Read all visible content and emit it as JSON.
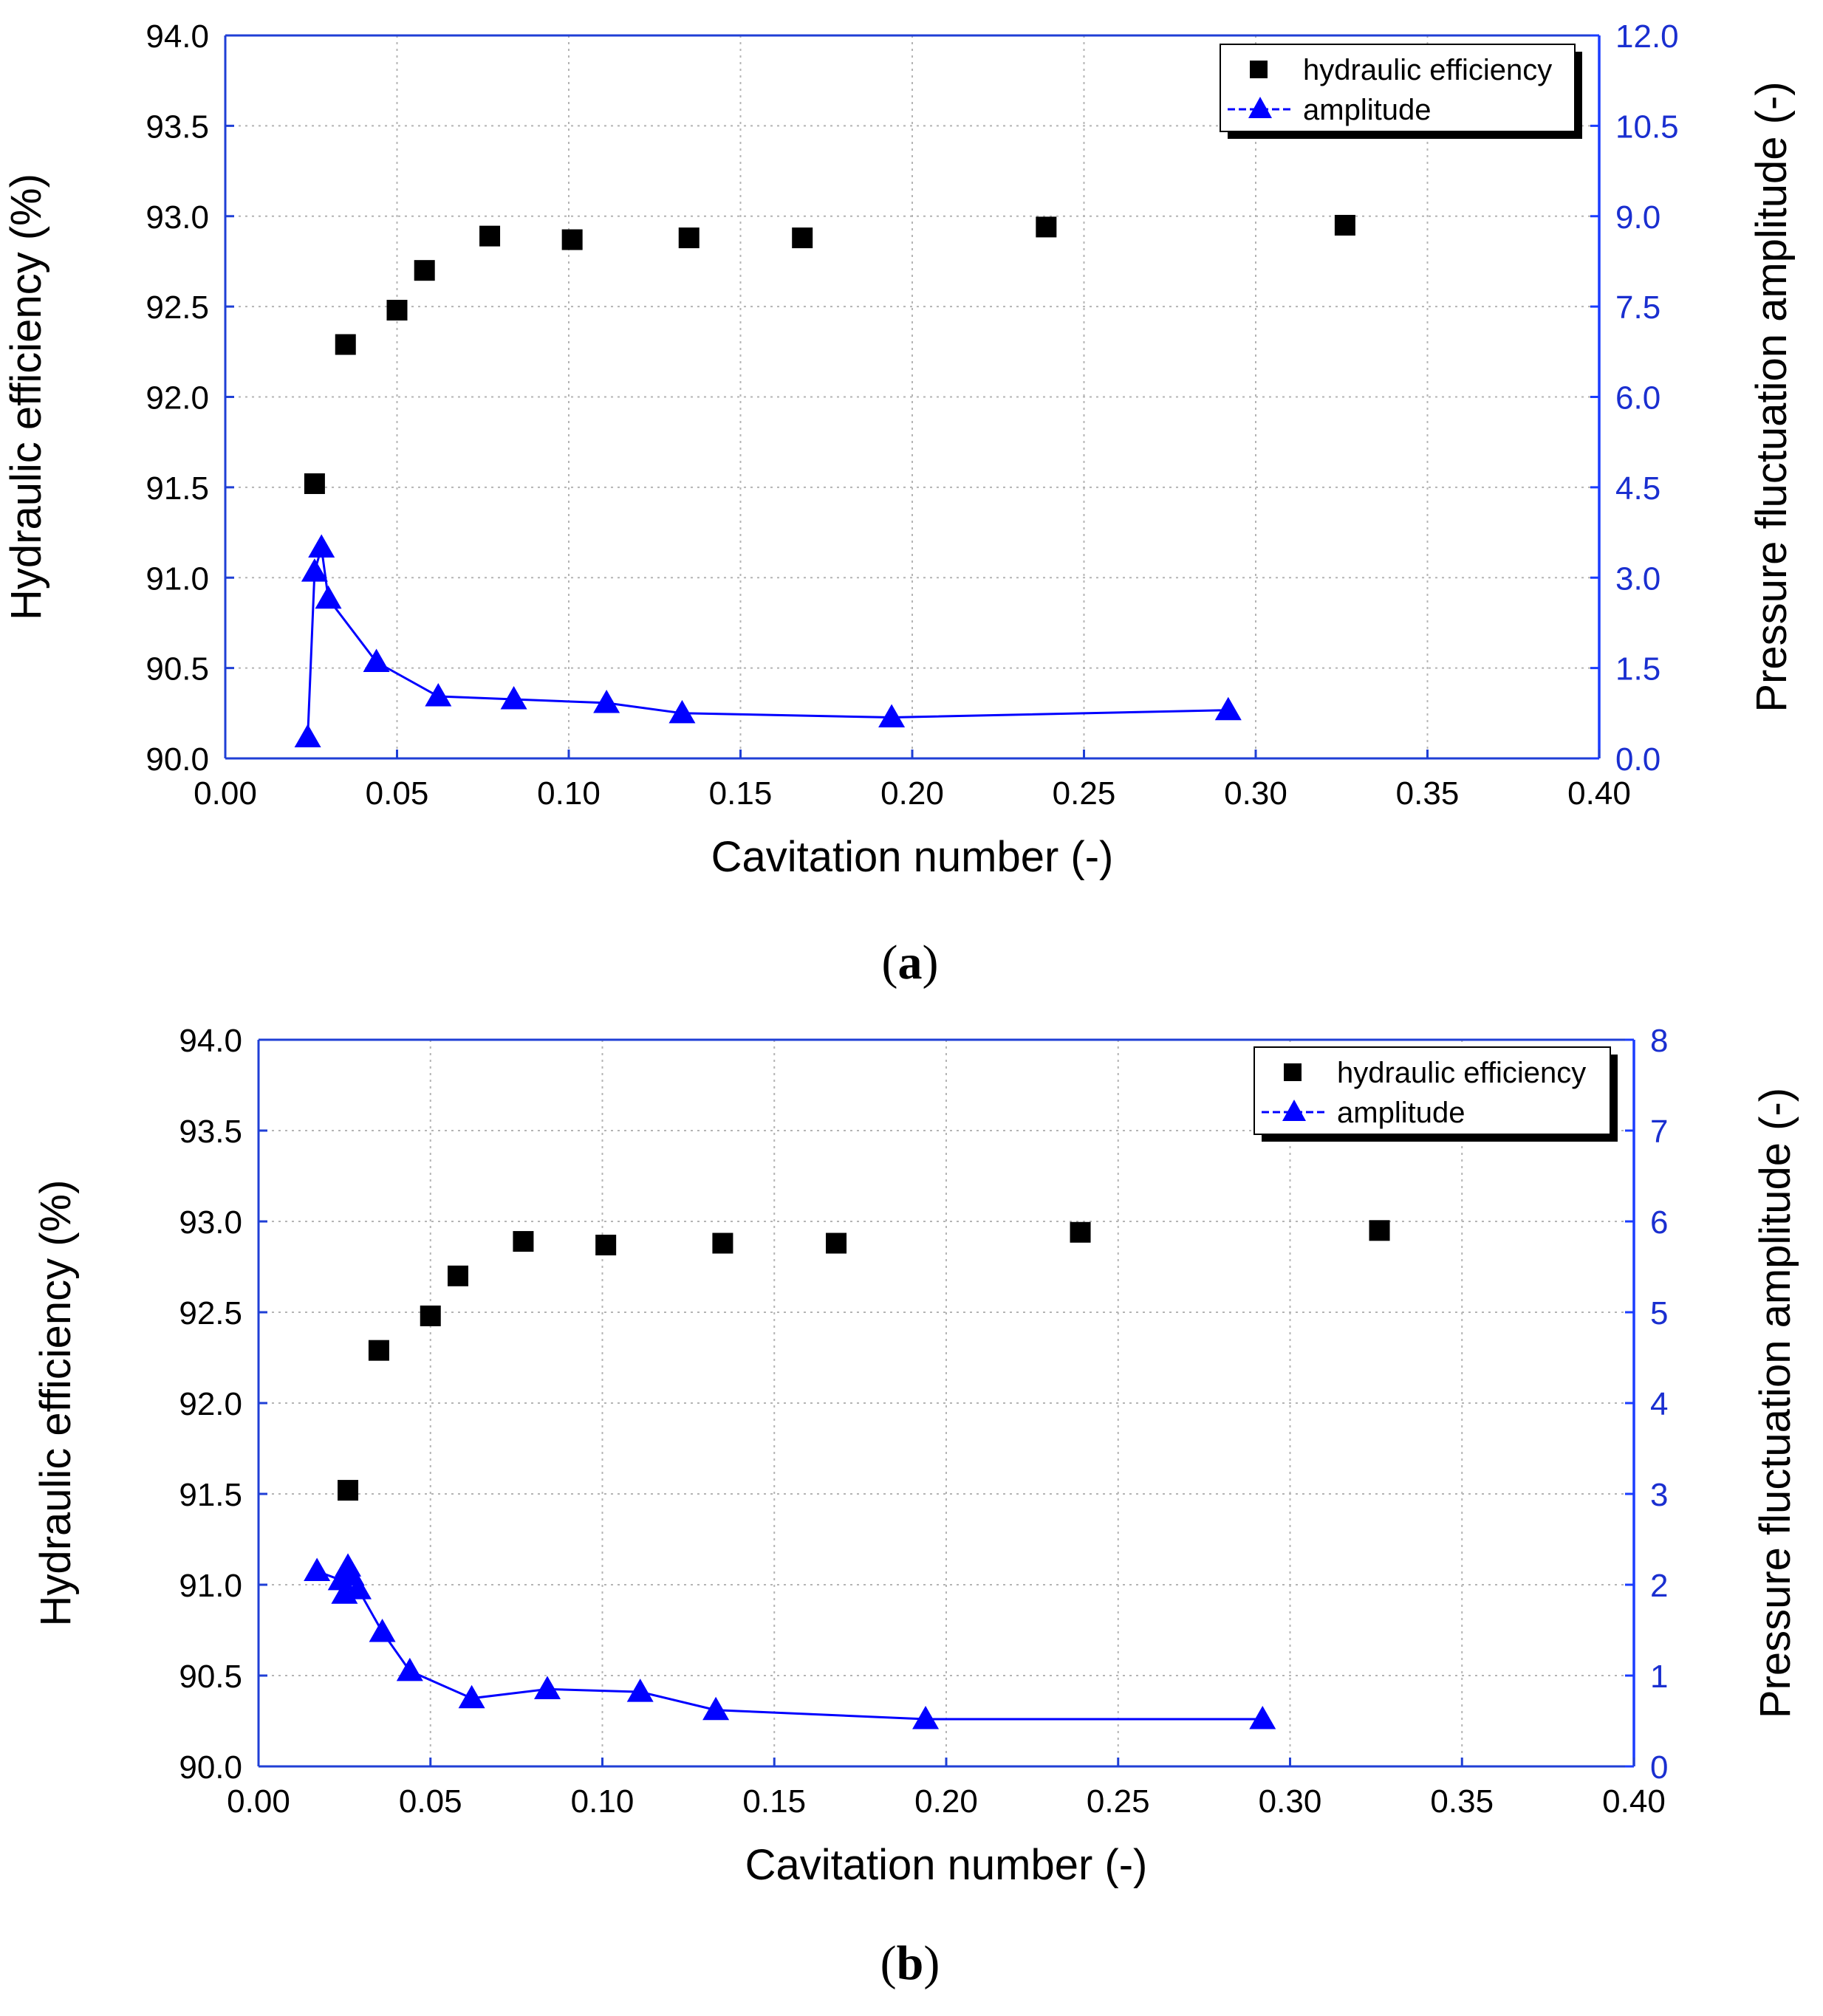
{
  "chart_data": [
    {
      "type": "scatter",
      "caption": "(a)",
      "caption_letter": "a",
      "xlabel": "Cavitation number (-)",
      "ylabel": "Hydraulic efficiency (%)",
      "y2label": "Pressure fluctuation amplitude (-)",
      "xlim": [
        0,
        0.4
      ],
      "ylim": [
        90.0,
        94.0
      ],
      "y2lim": [
        0,
        12.0
      ],
      "xticks": [
        "0.00",
        "0.05",
        "0.10",
        "0.15",
        "0.20",
        "0.25",
        "0.30",
        "0.35",
        "0.40"
      ],
      "yticks": [
        "90.0",
        "90.5",
        "91.0",
        "91.5",
        "92.0",
        "92.5",
        "93.0",
        "93.5",
        "94.0"
      ],
      "y2ticks": [
        "0.0",
        "1.5",
        "3.0",
        "4.5",
        "6.0",
        "7.5",
        "9.0",
        "10.5",
        "12.0"
      ],
      "grid": true,
      "legend_position": "top-right",
      "series": [
        {
          "name": "hydraulic efficiency",
          "axis": "left",
          "marker": "square",
          "color": "#000000",
          "x": [
            0.026,
            0.035,
            0.05,
            0.058,
            0.077,
            0.101,
            0.135,
            0.168,
            0.239,
            0.326
          ],
          "y": [
            91.52,
            92.29,
            92.48,
            92.7,
            92.89,
            92.87,
            92.88,
            92.88,
            92.94,
            92.95
          ]
        },
        {
          "name": "amplitude",
          "axis": "right",
          "marker": "triangle",
          "line": true,
          "color": "#0000ff",
          "x": [
            0.024,
            0.026,
            0.028,
            0.03,
            0.044,
            0.062,
            0.084,
            0.111,
            0.133,
            0.194,
            0.292
          ],
          "y": [
            0.35,
            3.1,
            3.5,
            2.65,
            1.6,
            1.03,
            0.98,
            0.92,
            0.75,
            0.68,
            0.8
          ]
        }
      ]
    },
    {
      "type": "scatter",
      "caption": "(b)",
      "caption_letter": "b",
      "xlabel": "Cavitation number (-)",
      "ylabel": "Hydraulic efficiency (%)",
      "y2label": "Pressure fluctuation amplitude (-)",
      "xlim": [
        0,
        0.4
      ],
      "ylim": [
        90.0,
        94.0
      ],
      "y2lim": [
        0,
        8
      ],
      "xticks": [
        "0.00",
        "0.05",
        "0.10",
        "0.15",
        "0.20",
        "0.25",
        "0.30",
        "0.35",
        "0.40"
      ],
      "yticks": [
        "90.0",
        "90.5",
        "91.0",
        "91.5",
        "92.0",
        "92.5",
        "93.0",
        "93.5",
        "94.0"
      ],
      "y2ticks": [
        "0",
        "1",
        "2",
        "3",
        "4",
        "5",
        "6",
        "7",
        "8"
      ],
      "grid": true,
      "legend_position": "top-right",
      "series": [
        {
          "name": "hydraulic efficiency",
          "axis": "left",
          "marker": "square",
          "color": "#000000",
          "x": [
            0.026,
            0.035,
            0.05,
            0.058,
            0.077,
            0.101,
            0.135,
            0.168,
            0.239,
            0.326
          ],
          "y": [
            91.52,
            92.29,
            92.48,
            92.7,
            92.89,
            92.87,
            92.88,
            92.88,
            92.94,
            92.95
          ]
        },
        {
          "name": "amplitude",
          "axis": "right",
          "marker": "triangle",
          "line": true,
          "color": "#0000ff",
          "x": [
            0.017,
            0.024,
            0.025,
            0.026,
            0.027,
            0.029,
            0.036,
            0.044,
            0.062,
            0.084,
            0.111,
            0.133,
            0.194,
            0.292
          ],
          "y": [
            2.15,
            2.05,
            1.9,
            2.2,
            2.1,
            1.95,
            1.48,
            1.05,
            0.75,
            0.85,
            0.82,
            0.62,
            0.52,
            0.52
          ]
        }
      ]
    }
  ]
}
